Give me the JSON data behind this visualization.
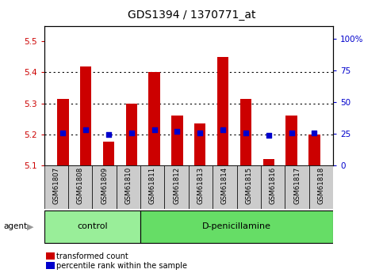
{
  "title": "GDS1394 / 1370771_at",
  "categories": [
    "GSM61807",
    "GSM61808",
    "GSM61809",
    "GSM61810",
    "GSM61811",
    "GSM61812",
    "GSM61813",
    "GSM61814",
    "GSM61815",
    "GSM61816",
    "GSM61817",
    "GSM61818"
  ],
  "bar_tops": [
    5.315,
    5.42,
    5.175,
    5.3,
    5.4,
    5.26,
    5.235,
    5.45,
    5.315,
    5.12,
    5.26,
    5.2
  ],
  "bar_bottom": 5.1,
  "percentile_values": [
    5.205,
    5.215,
    5.2,
    5.205,
    5.215,
    5.21,
    5.203,
    5.215,
    5.205,
    5.197,
    5.205,
    5.203
  ],
  "bar_color": "#cc0000",
  "dot_color": "#0000cc",
  "ylim_left": [
    5.1,
    5.55
  ],
  "yticks_left": [
    5.1,
    5.2,
    5.3,
    5.4,
    5.5
  ],
  "ylim_right": [
    0,
    110
  ],
  "yticks_right": [
    0,
    25,
    50,
    75,
    100
  ],
  "yticklabels_right": [
    "0",
    "25",
    "50",
    "75",
    "100%"
  ],
  "groups": [
    {
      "label": "control",
      "start": 0,
      "end": 3,
      "color": "#99ee99"
    },
    {
      "label": "D-penicillamine",
      "start": 4,
      "end": 11,
      "color": "#66dd66"
    }
  ],
  "agent_label": "agent",
  "legend_items": [
    {
      "label": "transformed count",
      "color": "#cc0000"
    },
    {
      "label": "percentile rank within the sample",
      "color": "#0000cc"
    }
  ],
  "bg_color": "#ffffff",
  "bar_width": 0.5,
  "tick_label_color_left": "#cc0000",
  "tick_label_color_right": "#0000cc",
  "xlabel_bg": "#cccccc",
  "dotted_grid_lines": [
    5.2,
    5.3,
    5.4
  ],
  "title_fontsize": 10,
  "tick_fontsize": 7.5,
  "label_fontsize": 7.5
}
